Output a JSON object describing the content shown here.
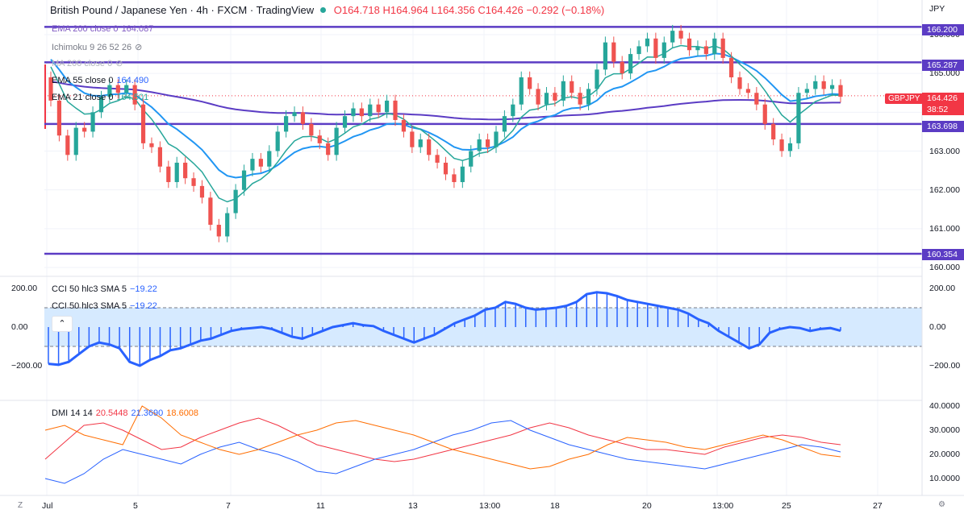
{
  "header": {
    "symbol": "British Pound / Japanese Yen · 4h · FXCM · TradingView",
    "o": "O164.718",
    "h": "H164.964",
    "l": "L164.356",
    "c": "C164.426",
    "chg": "−0.292 (−0.18%)"
  },
  "currency": "JPY",
  "legend": {
    "ema200": "EMA 200 close 0",
    "ema200_val": "164.087",
    "ichimoku": "Ichimoku 9 26 52 26",
    "ma200": "MA 200 close 0",
    "ema55": "EMA 55 close 0",
    "ema55_val": "164.490",
    "ema21": "EMA 21 close 0",
    "ema21_val": "164.501",
    "cci1": "CCI 50 hlc3 SMA 5",
    "cci1_val": "−19.22",
    "cci2": "CCI 50 hlc3 SMA 5",
    "cci2_val": "−19.22",
    "dmi": "DMI 14 14",
    "dmi_a": "20.5448",
    "dmi_b": "21.3690",
    "dmi_c": "18.6008"
  },
  "price_tags": {
    "l1": "166.200",
    "l2": "165.287",
    "cur_sym": "GBPJPY",
    "cur": "164.426",
    "timer": "38:52",
    "l3": "163.698",
    "l4": "160.354"
  },
  "chart_data": {
    "type": "candlestick",
    "x_ticks": [
      "Jul",
      "5",
      "7",
      "11",
      "13",
      "13:00",
      "18",
      "20",
      "13:00",
      "25",
      "27"
    ],
    "price_axis": [
      "166.000",
      "165.000",
      "164.000",
      "163.000",
      "162.000",
      "161.000",
      "160.000"
    ],
    "cci_axis": [
      "200.00",
      "0.00",
      "−200.00"
    ],
    "dmi_axis": [
      "40.0000",
      "30.0000",
      "20.0000",
      "10.0000"
    ],
    "levels": [
      166.2,
      165.287,
      163.698,
      160.354
    ],
    "candles_close": [
      164.3,
      163.4,
      162.9,
      163.6,
      163.5,
      164.0,
      164.4,
      164.7,
      164.5,
      164.7,
      164.2,
      163.2,
      163.1,
      162.6,
      162.2,
      162.7,
      162.3,
      162.1,
      161.8,
      161.1,
      160.8,
      161.4,
      162.0,
      162.5,
      162.8,
      162.6,
      163.0,
      163.5,
      163.9,
      164.0,
      163.7,
      163.4,
      163.2,
      162.9,
      163.6,
      163.9,
      164.1,
      163.9,
      164.2,
      164.0,
      164.3,
      163.8,
      163.5,
      163.1,
      163.3,
      162.9,
      162.7,
      162.4,
      162.2,
      162.6,
      163.0,
      163.3,
      163.1,
      163.5,
      163.9,
      164.2,
      164.9,
      164.6,
      164.2,
      164.5,
      164.3,
      164.8,
      164.5,
      164.2,
      164.6,
      165.1,
      165.8,
      165.3,
      165.0,
      165.5,
      165.7,
      165.9,
      165.4,
      165.8,
      166.1,
      165.9,
      165.6,
      165.7,
      165.5,
      165.9,
      165.4,
      164.9,
      164.6,
      164.5,
      164.2,
      163.7,
      163.3,
      163.0,
      163.2,
      164.5,
      164.6,
      164.8,
      164.6,
      164.7,
      164.4
    ],
    "cci": [
      -190,
      -195,
      -180,
      -140,
      -100,
      -80,
      -90,
      -110,
      -180,
      -200,
      -170,
      -150,
      -120,
      -110,
      -90,
      -70,
      -60,
      -40,
      -20,
      -10,
      -5,
      0,
      -10,
      -30,
      -50,
      -60,
      -40,
      -20,
      0,
      10,
      20,
      10,
      5,
      -20,
      -40,
      -60,
      -80,
      -60,
      -40,
      -10,
      20,
      40,
      60,
      90,
      100,
      130,
      120,
      100,
      90,
      95,
      100,
      110,
      130,
      170,
      180,
      175,
      160,
      140,
      130,
      120,
      110,
      100,
      90,
      70,
      40,
      20,
      -20,
      -50,
      -80,
      -110,
      -90,
      -30,
      -10,
      0,
      -5,
      -20,
      -10,
      -5,
      -19
    ],
    "dmi_red": [
      18,
      25,
      32,
      33,
      30,
      26,
      22,
      23,
      27,
      30,
      33,
      35,
      32,
      28,
      24,
      22,
      20,
      18,
      17,
      18,
      20,
      22,
      24,
      26,
      28,
      31,
      33,
      31,
      28,
      26,
      24,
      22,
      22,
      21,
      20,
      23,
      25,
      27,
      28,
      27,
      25,
      24
    ],
    "dmi_blue": [
      10,
      8,
      12,
      18,
      22,
      20,
      18,
      16,
      20,
      23,
      25,
      22,
      20,
      17,
      13,
      12,
      15,
      18,
      20,
      22,
      25,
      28,
      30,
      33,
      34,
      30,
      27,
      24,
      22,
      20,
      18,
      17,
      16,
      15,
      14,
      16,
      18,
      20,
      22,
      24,
      23,
      21
    ],
    "dmi_orange": [
      30,
      32,
      28,
      26,
      24,
      40,
      35,
      28,
      25,
      22,
      20,
      22,
      25,
      28,
      30,
      33,
      34,
      32,
      30,
      28,
      25,
      22,
      20,
      18,
      16,
      14,
      15,
      18,
      20,
      24,
      27,
      26,
      25,
      23,
      22,
      24,
      26,
      28,
      26,
      23,
      20,
      19
    ]
  }
}
